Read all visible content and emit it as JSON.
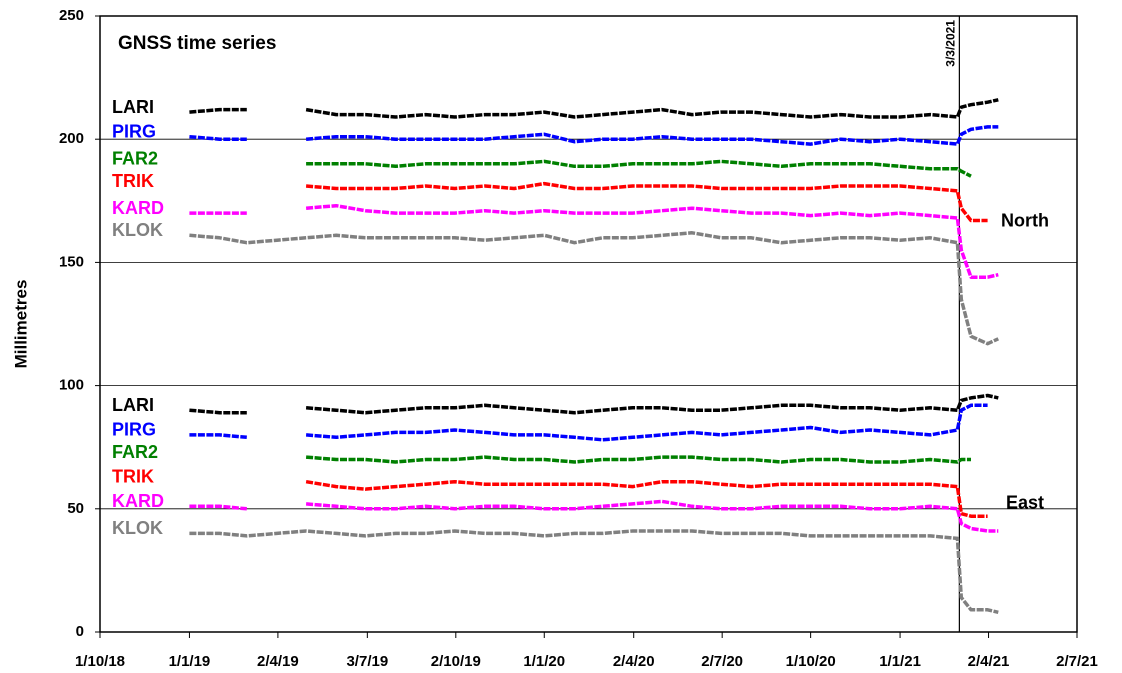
{
  "chart_data": {
    "type": "line",
    "title": "GNSS time series",
    "y_label": "Millimetres",
    "x": [
      "1/1/19",
      "1/2/19",
      "1/3/19",
      "1/4/19",
      "1/5/19",
      "1/6/19",
      "1/7/19",
      "1/8/19",
      "1/9/19",
      "1/10/19",
      "1/11/19",
      "1/12/19",
      "1/1/20",
      "1/2/20",
      "1/3/20",
      "1/4/20",
      "1/5/20",
      "1/6/20",
      "1/7/20",
      "1/8/20",
      "1/9/20",
      "1/10/20",
      "1/11/20",
      "1/12/20",
      "1/1/21",
      "1/2/21",
      "1/3/21",
      "5/3/21",
      "15/3/21",
      "1/4/21",
      "12/4/21"
    ],
    "xlim": [
      "1/10/18",
      "2/7/21"
    ],
    "xticks": [
      "1/10/18",
      "1/1/19",
      "2/4/19",
      "3/7/19",
      "2/10/19",
      "1/1/20",
      "2/4/20",
      "2/7/20",
      "1/10/20",
      "1/1/21",
      "2/4/21",
      "2/7/21"
    ],
    "ylim": [
      0,
      250
    ],
    "yticks": [
      0,
      50,
      100,
      150,
      200,
      250
    ],
    "grid": true,
    "annotation": {
      "text": "3/3/2021",
      "line_color": "#000000"
    },
    "groups": [
      {
        "label": "North",
        "series": [
          {
            "name": "LARI",
            "color": "#000000",
            "values": [
              211,
              212,
              212,
              null,
              212,
              210,
              210,
              209,
              210,
              209,
              210,
              210,
              211,
              209,
              210,
              211,
              212,
              210,
              211,
              211,
              210,
              209,
              210,
              209,
              209,
              210,
              209,
              213,
              214,
              215,
              216
            ]
          },
          {
            "name": "PIRG",
            "color": "#0000ff",
            "values": [
              201,
              200,
              200,
              null,
              200,
              201,
              201,
              200,
              200,
              200,
              200,
              201,
              202,
              199,
              200,
              200,
              201,
              200,
              200,
              200,
              199,
              198,
              200,
              199,
              200,
              199,
              198,
              202,
              204,
              205,
              205
            ]
          },
          {
            "name": "FAR2",
            "color": "#008000",
            "values": [
              null,
              null,
              null,
              null,
              190,
              190,
              190,
              189,
              190,
              190,
              190,
              190,
              191,
              189,
              189,
              190,
              190,
              190,
              191,
              190,
              189,
              190,
              190,
              190,
              189,
              188,
              188,
              187,
              185,
              null,
              null
            ]
          },
          {
            "name": "TRIK",
            "color": "#ff0000",
            "values": [
              null,
              null,
              null,
              null,
              181,
              180,
              180,
              180,
              181,
              180,
              181,
              180,
              182,
              180,
              180,
              181,
              181,
              181,
              180,
              180,
              180,
              180,
              181,
              181,
              181,
              180,
              179,
              172,
              167,
              167,
              null
            ]
          },
          {
            "name": "KARD",
            "color": "#ff00ff",
            "values": [
              170,
              170,
              170,
              null,
              172,
              173,
              171,
              170,
              170,
              170,
              171,
              170,
              171,
              170,
              170,
              170,
              171,
              172,
              171,
              170,
              170,
              169,
              170,
              169,
              170,
              169,
              168,
              155,
              144,
              144,
              145
            ]
          },
          {
            "name": "KLOK",
            "color": "#808080",
            "values": [
              161,
              160,
              158,
              159,
              160,
              161,
              160,
              160,
              160,
              160,
              159,
              160,
              161,
              158,
              160,
              160,
              161,
              162,
              160,
              160,
              158,
              159,
              160,
              160,
              159,
              160,
              158,
              135,
              120,
              117,
              119
            ]
          }
        ]
      },
      {
        "label": "East",
        "series": [
          {
            "name": "LARI",
            "color": "#000000",
            "values": [
              90,
              89,
              89,
              null,
              91,
              90,
              89,
              90,
              91,
              91,
              92,
              91,
              90,
              89,
              90,
              91,
              91,
              90,
              90,
              91,
              92,
              92,
              91,
              91,
              90,
              91,
              90,
              94,
              95,
              96,
              95
            ]
          },
          {
            "name": "PIRG",
            "color": "#0000ff",
            "values": [
              80,
              80,
              79,
              null,
              80,
              79,
              80,
              81,
              81,
              82,
              81,
              80,
              80,
              79,
              78,
              79,
              80,
              81,
              80,
              81,
              82,
              83,
              81,
              82,
              81,
              80,
              82,
              90,
              92,
              92,
              null
            ]
          },
          {
            "name": "FAR2",
            "color": "#008000",
            "values": [
              null,
              null,
              null,
              null,
              71,
              70,
              70,
              69,
              70,
              70,
              71,
              70,
              70,
              69,
              70,
              70,
              71,
              71,
              70,
              70,
              69,
              70,
              70,
              69,
              69,
              70,
              69,
              70,
              70,
              null,
              null
            ]
          },
          {
            "name": "TRIK",
            "color": "#ff0000",
            "values": [
              null,
              null,
              null,
              null,
              61,
              59,
              58,
              59,
              60,
              61,
              60,
              60,
              60,
              60,
              60,
              59,
              61,
              61,
              60,
              59,
              60,
              60,
              60,
              60,
              60,
              60,
              59,
              48,
              47,
              47,
              null
            ]
          },
          {
            "name": "KARD",
            "color": "#ff00ff",
            "values": [
              51,
              51,
              50,
              null,
              52,
              51,
              50,
              50,
              51,
              50,
              51,
              51,
              50,
              50,
              51,
              52,
              53,
              51,
              50,
              50,
              51,
              51,
              51,
              50,
              50,
              51,
              50,
              44,
              42,
              41,
              41
            ]
          },
          {
            "name": "KLOK",
            "color": "#808080",
            "values": [
              40,
              40,
              39,
              40,
              41,
              40,
              39,
              40,
              40,
              41,
              40,
              40,
              39,
              40,
              40,
              41,
              41,
              41,
              40,
              40,
              40,
              39,
              39,
              39,
              39,
              39,
              38,
              14,
              9,
              9,
              8
            ]
          }
        ]
      }
    ]
  }
}
